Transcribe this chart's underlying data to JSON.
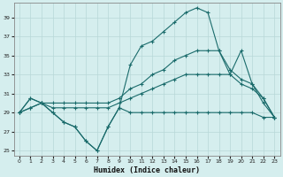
{
  "title": "",
  "xlabel": "Humidex (Indice chaleur)",
  "background_color": "#d5eeee",
  "grid_color": "#b8d8d8",
  "line_color": "#1a6b6b",
  "xlim": [
    -0.5,
    23.5
  ],
  "ylim": [
    24.5,
    40.5
  ],
  "yticks": [
    25,
    27,
    29,
    31,
    33,
    35,
    37,
    39
  ],
  "xticks": [
    0,
    1,
    2,
    3,
    4,
    5,
    6,
    7,
    8,
    9,
    10,
    11,
    12,
    13,
    14,
    15,
    16,
    17,
    18,
    19,
    20,
    21,
    22,
    23
  ],
  "series1_x": [
    0,
    1,
    2,
    3,
    4,
    5,
    6,
    7,
    8,
    9,
    10,
    11,
    12,
    13,
    14,
    15,
    16,
    17,
    18,
    19,
    20,
    21,
    22,
    23
  ],
  "series1_y": [
    29.0,
    30.5,
    30.0,
    29.0,
    28.0,
    27.5,
    26.0,
    25.0,
    27.5,
    29.5,
    29.0,
    29.0,
    29.0,
    29.0,
    29.0,
    29.0,
    29.0,
    29.0,
    29.0,
    29.0,
    29.0,
    29.0,
    28.5,
    28.5
  ],
  "series2_x": [
    0,
    1,
    2,
    3,
    4,
    5,
    6,
    7,
    8,
    9,
    10,
    11,
    12,
    13,
    14,
    15,
    16,
    17,
    18,
    19,
    20,
    21,
    22,
    23
  ],
  "series2_y": [
    29.0,
    29.5,
    30.0,
    29.5,
    29.5,
    29.5,
    29.5,
    29.5,
    29.5,
    30.0,
    30.5,
    31.0,
    31.5,
    32.0,
    32.5,
    33.0,
    33.0,
    33.0,
    33.0,
    33.0,
    32.0,
    31.5,
    30.5,
    28.5
  ],
  "series3_x": [
    0,
    1,
    2,
    3,
    4,
    5,
    6,
    7,
    8,
    9,
    10,
    11,
    12,
    13,
    14,
    15,
    16,
    17,
    18,
    19,
    20,
    21,
    22,
    23
  ],
  "series3_y": [
    29.0,
    29.5,
    30.0,
    30.0,
    30.0,
    30.0,
    30.0,
    30.0,
    30.0,
    30.5,
    31.5,
    32.0,
    33.0,
    33.5,
    34.5,
    35.0,
    35.5,
    35.5,
    35.5,
    33.5,
    32.5,
    32.0,
    30.5,
    28.5
  ],
  "series4_x": [
    0,
    1,
    2,
    3,
    4,
    5,
    6,
    7,
    8,
    9,
    10,
    11,
    12,
    13,
    14,
    15,
    16,
    17,
    18,
    19,
    20,
    21,
    22,
    23
  ],
  "series4_y": [
    29.0,
    30.5,
    30.0,
    29.0,
    28.0,
    27.5,
    26.0,
    25.0,
    27.5,
    29.5,
    34.0,
    36.0,
    36.5,
    37.5,
    38.5,
    39.5,
    40.0,
    39.5,
    35.5,
    33.0,
    35.5,
    32.0,
    30.0,
    28.5
  ]
}
